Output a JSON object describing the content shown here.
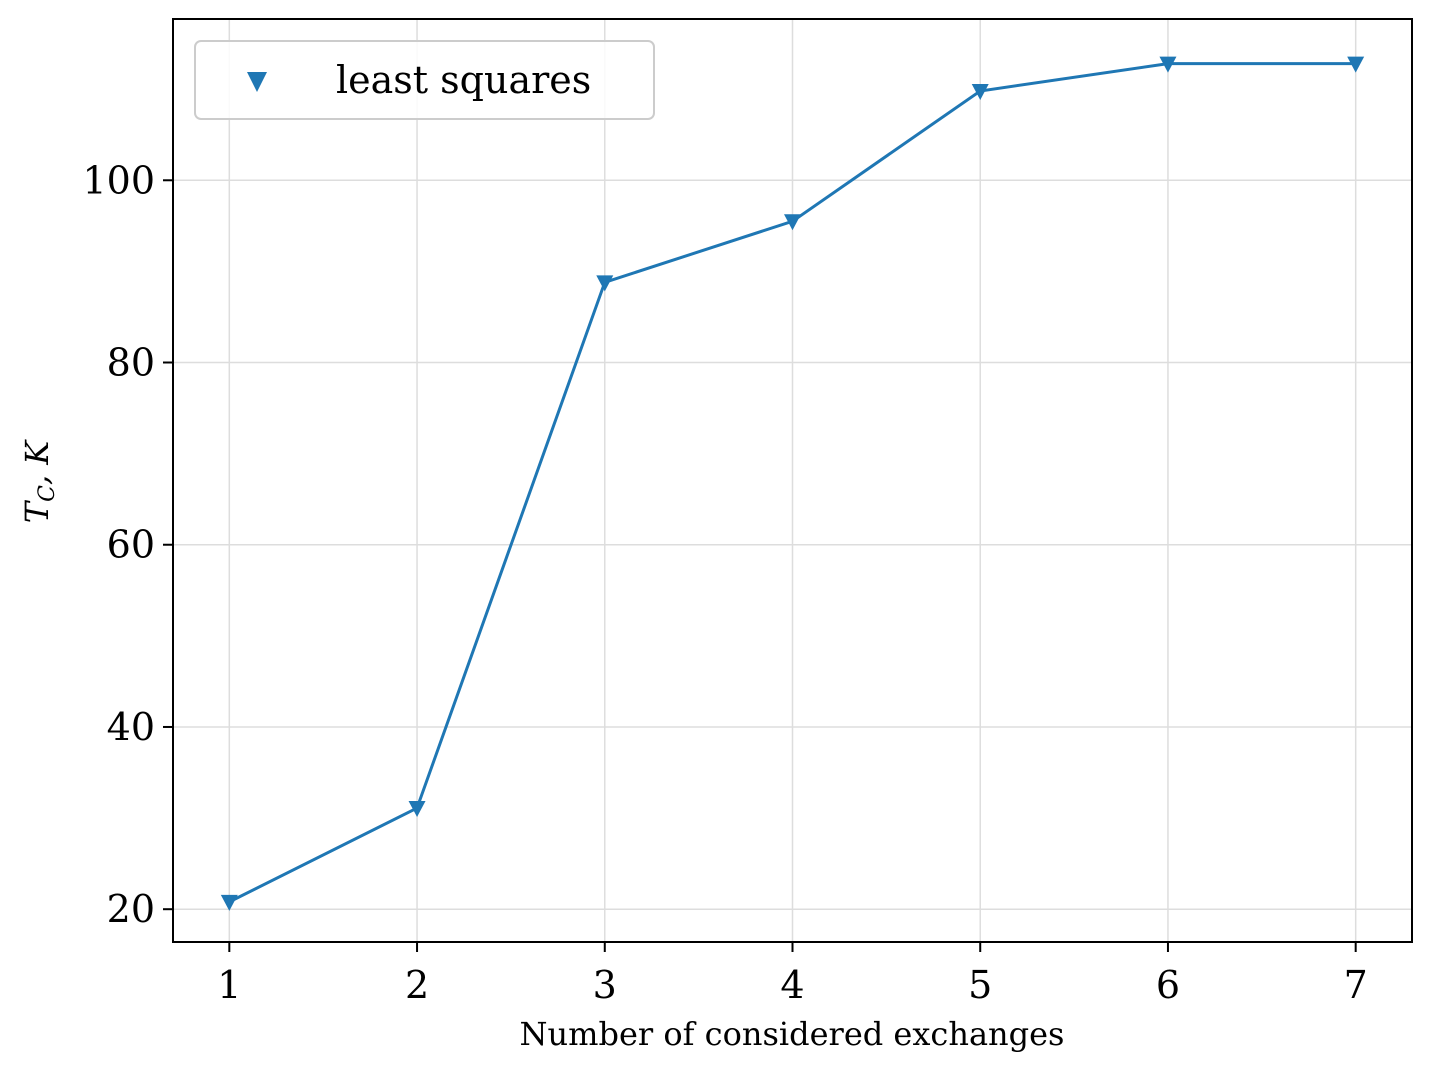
{
  "chart_data": {
    "type": "line",
    "title": "",
    "xlabel": "Number of considered exchanges",
    "ylabel_main": "T",
    "ylabel_sub": "C",
    "ylabel_tail": ", K",
    "x": [
      1,
      2,
      3,
      4,
      5,
      6,
      7
    ],
    "series": [
      {
        "name": "least squares",
        "marker": "triangle-down",
        "color": "#1f77b4",
        "values": [
          20.8,
          31.1,
          88.8,
          95.5,
          109.8,
          112.8,
          112.8
        ]
      }
    ],
    "xlim": [
      0.7,
      7.3
    ],
    "ylim": [
      16.4,
      117.7
    ],
    "xticks": [
      1,
      2,
      3,
      4,
      5,
      6,
      7
    ],
    "yticks": [
      20,
      40,
      60,
      80,
      100
    ],
    "grid": true,
    "legend_position": "top-left"
  }
}
